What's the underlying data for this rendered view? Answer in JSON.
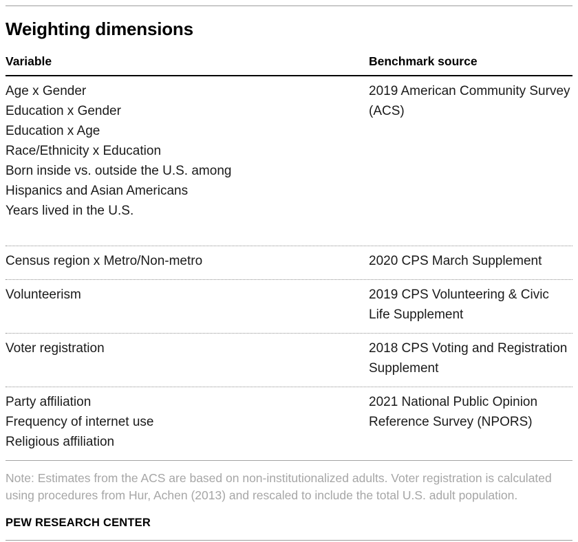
{
  "title": "Weighting dimensions",
  "table": {
    "headers": [
      "Variable",
      "Benchmark source"
    ],
    "rows": [
      {
        "variables": [
          "Age x Gender",
          "Education x Gender",
          "Education x Age",
          "Race/Ethnicity x Education",
          "Born inside vs. outside the U.S. among Hispanics and Asian Americans",
          "Years lived in the U.S."
        ],
        "source": "2019 American Community Survey (ACS)"
      },
      {
        "variables": [
          "Census region x Metro/Non-metro"
        ],
        "source": "2020 CPS March Supplement"
      },
      {
        "variables": [
          "Volunteerism"
        ],
        "source": "2019 CPS Volunteering & Civic Life Supplement"
      },
      {
        "variables": [
          "Voter registration"
        ],
        "source": "2018 CPS Voting and Registration Supplement"
      },
      {
        "variables": [
          "Party affiliation",
          "Frequency of internet use",
          "Religious affiliation"
        ],
        "source": "2021 National Public Opinion Reference Survey (NPORS)"
      }
    ]
  },
  "note": "Note: Estimates from the ACS are based on non-institutionalized adults. Voter registration is calculated using procedures from Hur, Achen (2013) and rescaled to include the total U.S. adult population.",
  "footer": "PEW RESEARCH CENTER",
  "colors": {
    "text": "#1a1a1a",
    "note_gray": "#a6a6a6",
    "rule_gray": "#9c9c9c",
    "header_border": "#000000"
  }
}
